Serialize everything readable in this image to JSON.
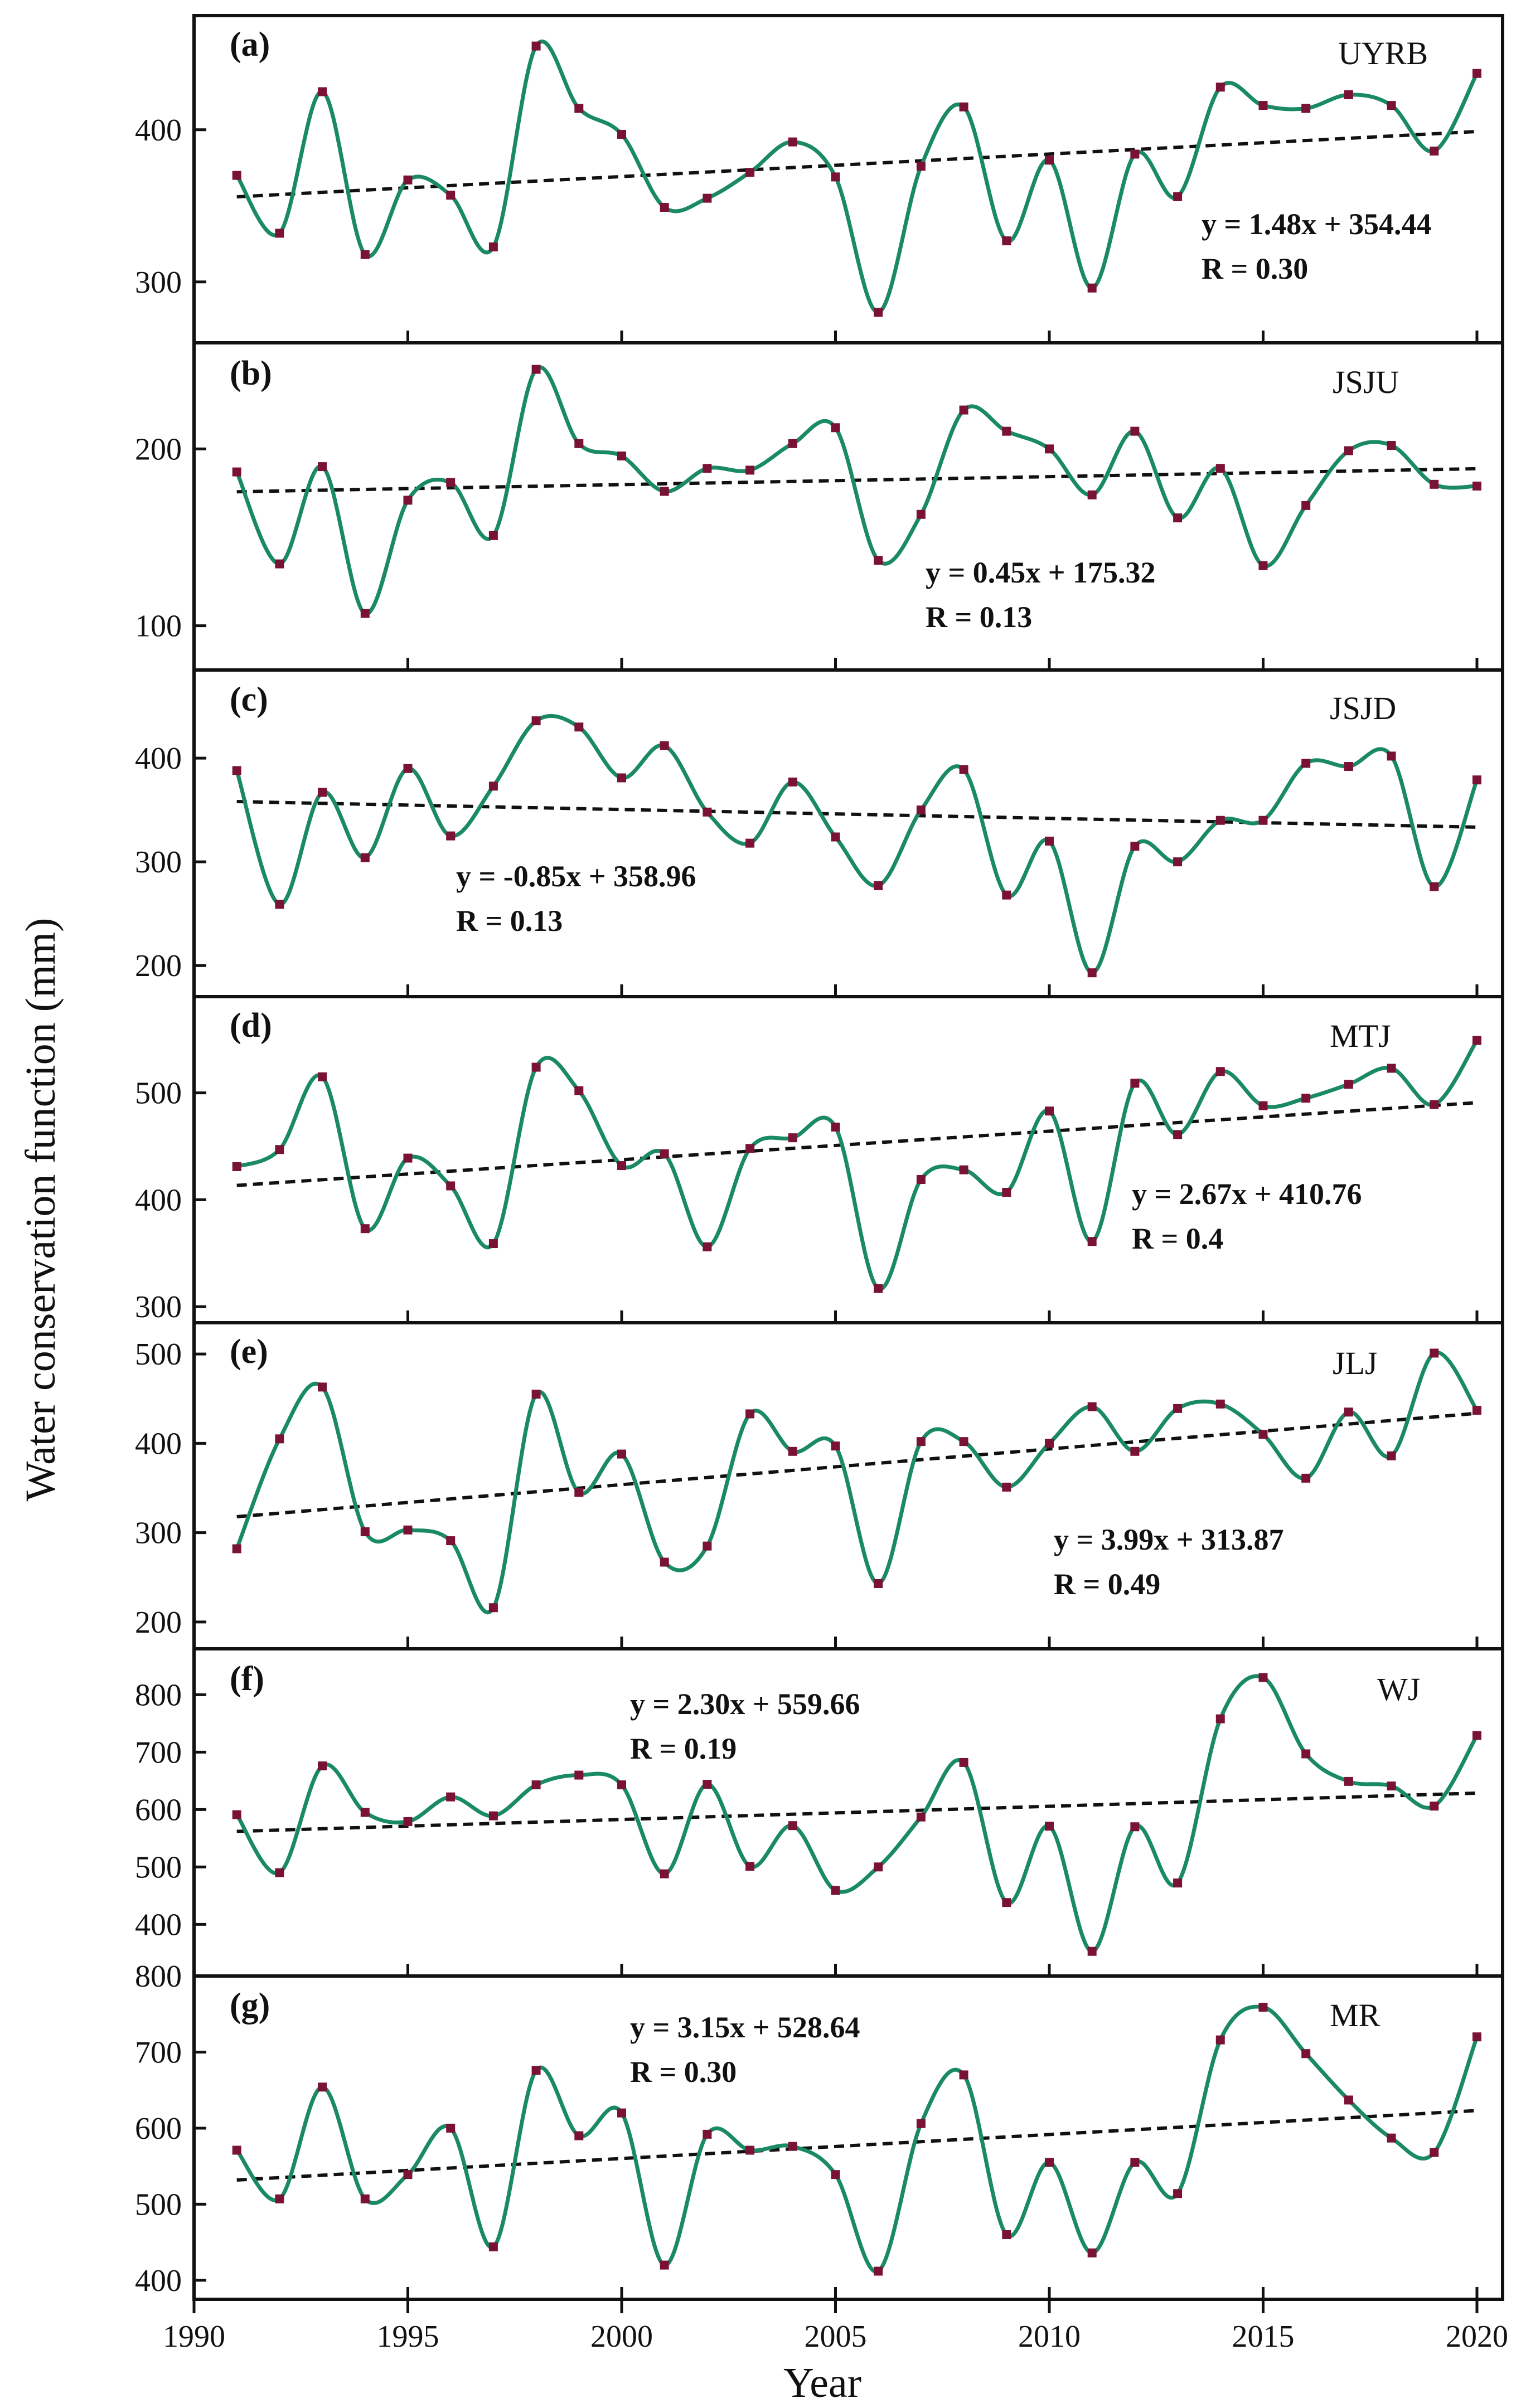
{
  "chart_data": [
    {
      "type": "line",
      "panel": "(a)",
      "region": "UYRB",
      "x": [
        1991,
        1992,
        1993,
        1994,
        1995,
        1996,
        1997,
        1998,
        1999,
        2000,
        2001,
        2002,
        2003,
        2004,
        2005,
        2006,
        2007,
        2008,
        2009,
        2010,
        2011,
        2012,
        2013,
        2014,
        2015,
        2016,
        2017,
        2018,
        2019,
        2020
      ],
      "values": [
        370,
        332,
        425,
        318,
        367,
        357,
        323,
        455,
        414,
        397,
        349,
        355,
        372,
        392,
        369,
        280,
        376,
        415,
        327,
        380,
        296,
        384,
        356,
        428,
        416,
        414,
        423,
        416,
        386,
        437
      ],
      "yticks": [
        300,
        400
      ],
      "ylim": [
        260,
        475
      ],
      "trend": {
        "slope": 1.48,
        "intercept": 354.44
      },
      "equation": "y = 1.48x + 354.44",
      "r_text": "R = 0.30"
    },
    {
      "type": "line",
      "panel": "(b)",
      "region": "JSJU",
      "x": [
        1991,
        1992,
        1993,
        1994,
        1995,
        1996,
        1997,
        1998,
        1999,
        2000,
        2001,
        2002,
        2003,
        2004,
        2005,
        2006,
        2007,
        2008,
        2009,
        2010,
        2011,
        2012,
        2013,
        2014,
        2015,
        2016,
        2017,
        2018,
        2019,
        2020
      ],
      "values": [
        187,
        135,
        190,
        107,
        171,
        181,
        151,
        245,
        203,
        196,
        176,
        189,
        188,
        203,
        212,
        137,
        163,
        222,
        210,
        200,
        174,
        210,
        161,
        189,
        134,
        168,
        199,
        202,
        180,
        179
      ],
      "yticks": [
        100,
        200
      ],
      "ylim": [
        75,
        260
      ],
      "trend": {
        "slope": 0.45,
        "intercept": 175.32
      },
      "equation": "y = 0.45x + 175.32",
      "r_text": "R = 0.13"
    },
    {
      "type": "line",
      "panel": "(c)",
      "region": "JSJD",
      "x": [
        1991,
        1992,
        1993,
        1994,
        1995,
        1996,
        1997,
        1998,
        1999,
        2000,
        2001,
        2002,
        2003,
        2004,
        2005,
        2006,
        2007,
        2008,
        2009,
        2010,
        2011,
        2012,
        2013,
        2014,
        2015,
        2016,
        2017,
        2018,
        2019,
        2020
      ],
      "values": [
        388,
        259,
        367,
        304,
        390,
        325,
        373,
        436,
        430,
        381,
        412,
        348,
        318,
        377,
        324,
        277,
        350,
        389,
        268,
        320,
        193,
        315,
        300,
        340,
        340,
        395,
        392,
        402,
        276,
        379
      ],
      "yticks": [
        200,
        300,
        400
      ],
      "ylim": [
        170,
        485
      ],
      "trend": {
        "slope": -0.85,
        "intercept": 358.96
      },
      "equation": "y = -0.85x + 358.96",
      "r_text": "R = 0.13"
    },
    {
      "type": "line",
      "panel": "(d)",
      "region": "MTJ",
      "x": [
        1991,
        1992,
        1993,
        1994,
        1995,
        1996,
        1997,
        1998,
        1999,
        2000,
        2001,
        2002,
        2003,
        2004,
        2005,
        2006,
        2007,
        2008,
        2009,
        2010,
        2011,
        2012,
        2013,
        2014,
        2015,
        2016,
        2017,
        2018,
        2019,
        2020
      ],
      "values": [
        431,
        447,
        515,
        373,
        439,
        413,
        359,
        524,
        502,
        432,
        443,
        356,
        448,
        458,
        468,
        317,
        419,
        428,
        407,
        483,
        361,
        509,
        461,
        520,
        488,
        495,
        508,
        523,
        489,
        549
      ],
      "yticks": [
        300,
        400,
        500
      ],
      "ylim": [
        285,
        590
      ],
      "trend": {
        "slope": 2.67,
        "intercept": 410.76
      },
      "equation": "y = 2.67x + 410.76",
      "r_text": "R = 0.4"
    },
    {
      "type": "line",
      "panel": "(e)",
      "region": "JLJ",
      "x": [
        1991,
        1992,
        1993,
        1994,
        1995,
        1996,
        1997,
        1998,
        1999,
        2000,
        2001,
        2002,
        2003,
        2004,
        2005,
        2006,
        2007,
        2008,
        2009,
        2010,
        2011,
        2012,
        2013,
        2014,
        2015,
        2016,
        2017,
        2018,
        2019,
        2020
      ],
      "values": [
        282,
        405,
        463,
        301,
        303,
        291,
        216,
        455,
        345,
        388,
        267,
        285,
        433,
        391,
        397,
        243,
        402,
        402,
        351,
        400,
        441,
        391,
        439,
        444,
        410,
        361,
        435,
        386,
        501,
        437
      ],
      "yticks": [
        200,
        300,
        400,
        500
      ],
      "ylim": [
        170,
        535
      ],
      "trend": {
        "slope": 3.99,
        "intercept": 313.87
      },
      "equation": "y = 3.99x + 313.87",
      "r_text": "R = 0.49"
    },
    {
      "type": "line",
      "panel": "(f)",
      "region": "WJ",
      "x": [
        1991,
        1992,
        1993,
        1994,
        1995,
        1996,
        1997,
        1998,
        1999,
        2000,
        2001,
        2002,
        2003,
        2004,
        2005,
        2006,
        2007,
        2008,
        2009,
        2010,
        2011,
        2012,
        2013,
        2014,
        2015,
        2016,
        2017,
        2018,
        2019,
        2020
      ],
      "values": [
        591,
        490,
        676,
        595,
        579,
        622,
        589,
        643,
        660,
        643,
        488,
        644,
        501,
        572,
        459,
        500,
        587,
        682,
        438,
        571,
        353,
        570,
        472,
        758,
        830,
        697,
        649,
        641,
        606,
        729
      ],
      "yticks": [
        400,
        500,
        600,
        700,
        800
      ],
      "ylim": [
        310,
        880
      ],
      "trend": {
        "slope": 2.3,
        "intercept": 559.66
      },
      "equation": "y = 2.30x + 559.66",
      "r_text": "R = 0.19"
    },
    {
      "type": "line",
      "panel": "(g)",
      "region": "MR",
      "x": [
        1991,
        1992,
        1993,
        1994,
        1995,
        1996,
        1997,
        1998,
        1999,
        2000,
        2001,
        2002,
        2003,
        2004,
        2005,
        2006,
        2007,
        2008,
        2009,
        2010,
        2011,
        2012,
        2013,
        2014,
        2015,
        2016,
        2017,
        2018,
        2019,
        2020
      ],
      "values": [
        571,
        507,
        654,
        507,
        539,
        600,
        444,
        676,
        590,
        620,
        420,
        592,
        571,
        576,
        539,
        412,
        606,
        670,
        460,
        555,
        436,
        555,
        514,
        716,
        759,
        698,
        637,
        587,
        568,
        720
      ],
      "yticks": [
        400,
        500,
        600,
        700,
        800
      ],
      "ylim": [
        375,
        800
      ],
      "trend": {
        "slope": 3.15,
        "intercept": 528.64
      },
      "equation": "y = 3.15x + 528.64",
      "r_text": "R = 0.30"
    }
  ],
  "x_axis": {
    "label": "Year",
    "ticks": [
      1990,
      1995,
      2000,
      2005,
      2010,
      2015,
      2020
    ],
    "xlim": [
      1990,
      2020.6
    ]
  },
  "y_axis_label": "Water conservation function (mm)",
  "colors": {
    "line": "#1a8a64",
    "marker": "#7a1237",
    "trend": "#111111"
  }
}
